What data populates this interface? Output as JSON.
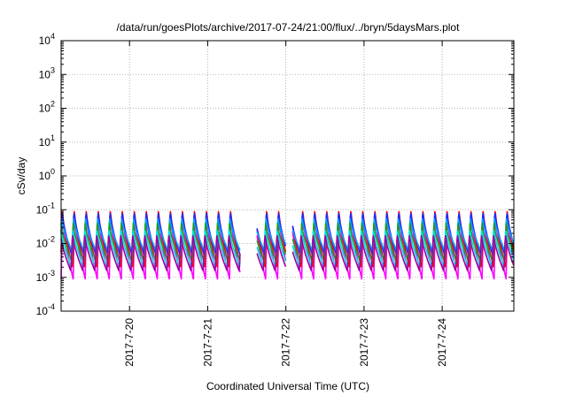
{
  "chart_data": {
    "type": "line",
    "title": "/data/run/goesPlots/archive/2017-07-24/21:00/flux/../bryn/5daysMars.plot",
    "xlabel": "Coordinated Universal Time (UTC)",
    "ylabel": "cSv/day",
    "yscale": "log",
    "ylim": [
      0.0001,
      10000
    ],
    "ytick_labels": [
      {
        "base": "10",
        "exp": "-4"
      },
      {
        "base": "10",
        "exp": "-3"
      },
      {
        "base": "10",
        "exp": "-2"
      },
      {
        "base": "10",
        "exp": "-1"
      },
      {
        "base": "10",
        "exp": "0"
      },
      {
        "base": "10",
        "exp": "1"
      },
      {
        "base": "10",
        "exp": "2"
      },
      {
        "base": "10",
        "exp": "3"
      },
      {
        "base": "10",
        "exp": "4"
      }
    ],
    "xlim": [
      "2017-07-19T03:00",
      "2017-07-24T22:00"
    ],
    "xtick_labels": [
      "2017-7-20",
      "2017-7-21",
      "2017-7-22",
      "2017-7-23",
      "2017-7-24"
    ],
    "xtick_dates": [
      "2017-07-20",
      "2017-07-21",
      "2017-07-22",
      "2017-07-23",
      "2017-07-24"
    ],
    "grid": true,
    "legend": "none",
    "pattern": {
      "cycles_per_day": 6.5,
      "gap_days": [
        [
          "2017-07-21T10:00",
          "2017-07-21T15:00"
        ],
        [
          "2017-07-22T00:00",
          "2017-07-22T02:00"
        ]
      ]
    },
    "series": [
      {
        "color": "#ff00ff",
        "peak": 0.07,
        "trough": 0.0009
      },
      {
        "color": "#ff0000",
        "peak": 0.11,
        "trough": 0.002
      },
      {
        "color": "#1f2aff",
        "peak": 0.1,
        "trough": 0.004
      },
      {
        "color": "#00a0ff",
        "peak": 0.06,
        "trough": 0.006
      },
      {
        "color": "#1aa020",
        "peak": 0.04,
        "trough": 0.003
      },
      {
        "color": "#00e0e0",
        "peak": 0.03,
        "trough": 0.002
      },
      {
        "color": "#a000a0",
        "peak": 0.02,
        "trough": 0.0015
      }
    ]
  }
}
